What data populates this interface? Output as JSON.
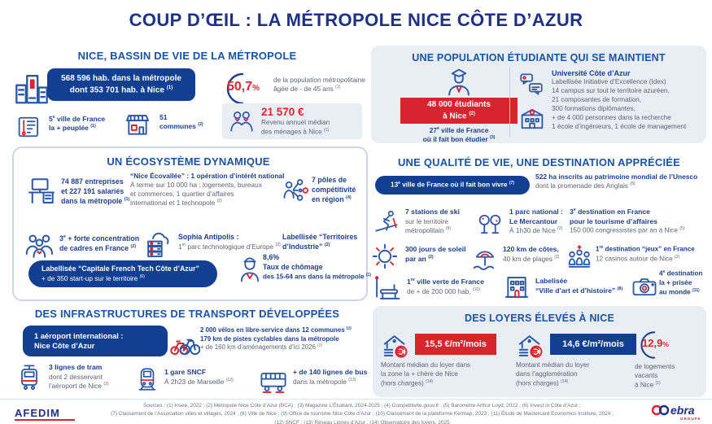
{
  "title": "COUP D’ŒIL : LA MÉTROPOLE NICE CÔTE D’AZUR",
  "colors": {
    "navy": "#1c3f8e",
    "header_blue": "#1a53a3",
    "red": "#d9232e",
    "panel": "#e9edf4",
    "pill": "#123f8f"
  },
  "bassin": {
    "header": "NICE, BASSIN DE VIE DE LA MÉTROPOLE",
    "pop_pill_l1": "568 596 hab. dans la métropole",
    "pop_pill_l2": "dont 353 701 hab. à Nice (1)",
    "pct_value": "50,7",
    "pct_sign": "%",
    "pct_l1": "de la population métropolitaine",
    "pct_l2": "âgée de - de 45 ans (1)",
    "ville_l1": "5e ville de France",
    "ville_l2": "la + peuplée (1)",
    "communes_l1": "51",
    "communes_l2": "communes (2)",
    "revenu_value": "21 570 €",
    "revenu_l1": "Revenu annuel médian",
    "revenu_l2": "des ménages à Nice (1)"
  },
  "etudiante": {
    "header": "UNE POPULATION ÉTUDIANTE QUI SE MAINTIENT",
    "etudiants_l1": "48 000 étudiants",
    "etudiants_l2": "à Nice (2)",
    "ville_l1": "27e ville de France",
    "ville_l2": "où il fait bon étudier (3)",
    "univ_title": "Université Côte d’Azur",
    "univ_l1": "Labellisée Initiative d’Excellence (Idex)",
    "univ_l2": "14 campus sur tout le territoire azuréen,",
    "univ_l3": "21 composantes de formation,",
    "univ_l4": "300 formations diplômantes,",
    "univ_l5": "+ de 4 000 personnes dans la recherche",
    "univ_l6": "1 école d’ingénieurs, 1 école de management"
  },
  "eco": {
    "header": "UN ÉCOSYSTÈME DYNAMIQUE",
    "entreprises_l1": "74 887 entreprises",
    "entreprises_l2": "et 227 191 salariés",
    "entreprises_l3": "dans la métropole (1)",
    "ecovallee_title": "“Nice Écovallée” : 1 opération d’intérêt national",
    "ecovallee_l1": "À terme sur 10 000 ha : logements, bureaux",
    "ecovallee_l2": "et commerces, 1 quartier d’affaires",
    "ecovallee_l3": "international et 1 technopole (2)",
    "poles_l1": "7 pôles de",
    "poles_l2": "compétitivité",
    "poles_l3": "en région (4)",
    "cadres_l1": "3e + forte concentration",
    "cadres_l2": "de cadres en France (2)",
    "sophia_title": "Sophia Antipolis :",
    "sophia_sub": "1er parc technologique d’Europe (2)",
    "territoires_l1": "Labellisée “Territoires",
    "territoires_l2": "d’Industrie” (2)",
    "frenchtech_l1": "Labellisée “Capitale French Tech Côte d’Azur”",
    "frenchtech_l2": "+ de 350 start-up sur le territoire (6)",
    "chomage_l1": "8,6%",
    "chomage_l2": "Taux de chômage",
    "chomage_l3": "des 15-64 ans dans la métropole (1)"
  },
  "qualite": {
    "header": "UNE QUALITÉ DE VIE, UNE DESTINATION APPRÉCIÉE",
    "pill": "13e ville de France où il fait bon vivre (7)",
    "unesco_l1": "522 ha inscrits au patrimoine mondial de l’Unesco",
    "unesco_l2": "dont la promenade des Anglais (8)",
    "ski_l1": "7 stations de ski",
    "ski_l2": "sur le territoire",
    "ski_l3": "métropolitain (9)",
    "parc_l1": "1 parc national :",
    "parc_l2": "Le Mercantour",
    "parc_l3": "À 1h30 de Nice (2)",
    "affaires_l1": "3e destination en France",
    "affaires_l2": "pour le tourisme d’affaires",
    "affaires_l3": "150 000 congressistes par an à Nice (5)",
    "soleil_l1": "300 jours de soleil",
    "soleil_l2": "par an (2)",
    "cotes_l1": "120 km de côtes,",
    "cotes_l2": "40 km de plages (2)",
    "jeux_l1": "1re destination “jeux” en France",
    "jeux_l2": "12 casinos autour de Nice (2)",
    "verte_l1": "1re ville verte de France",
    "verte_l2": "de + de 200 000 hab. (10)",
    "art_l1": "Labelisée",
    "art_l2": "“Ville d’art et d’histoire” (8)",
    "monde_l1": "4e destination",
    "monde_l2": "la + prisée",
    "monde_l3": "au monde (11)"
  },
  "transport": {
    "header": "DES INFRASTRUCTURES DE TRANSPORT DÉVELOPPÉES",
    "aeroport_l1": "1 aéroport international :",
    "aeroport_l2": "Nice Côte d’Azur",
    "velos_l1": "2 000 vélos en libre-service dans 12 communes (2)",
    "velos_l2": "179 km de pistes cyclables dans la métropole",
    "velos_l3": "+ de 160 km d’aménagements d’ici 2026 (2)",
    "tram_l1": "3 lignes de tram",
    "tram_l2": "dont 2 desservant",
    "tram_l3": "l’aéroport de Nice (2)",
    "gare_l1": "1 gare SNCF",
    "gare_l2": "À 2h23 de Marseille (12)",
    "bus_l1": "+ de 140 lignes de bus",
    "bus_l2": "dans la métropole (13)"
  },
  "loyers": {
    "header": "DES LOYERS ÉLEVÉS À NICE",
    "zone_value": "15,5 €/m²/mois",
    "zone_l1": "Montant médian du loyer dans",
    "zone_l2": "la zone la + chère de Nice",
    "zone_l3": "(hors charges) (14)",
    "agglo_value": "14,6 €/m²/mois",
    "agglo_l1": "Montant médian du loyer",
    "agglo_l2": "dans l’agglomération",
    "agglo_l3": "(hors charges) (14)",
    "vacants_value": "12,9",
    "vacants_sign": "%",
    "vacants_l1": "de logements",
    "vacants_l2": "vacants",
    "vacants_l3": "à Nice (1)"
  },
  "footer": {
    "brand_left": "AFEDIM",
    "sources_l1": "Sources : (1) Insee, 2022 ; (2) Métropole Nice Côte d’Azur (BCA) ; (3) Magazine L’Étudiant, 2024-2025 ; (4) Competitivite.gouv.fr ; (5) Baromètre Arthur Loyd, 2022 ; (6) Invest in Côte d’Azur ;",
    "sources_l2": "(7) Classement de l’Association villes et villages, 2024 ; (8) Ville de Nice ; (9) Office de tourisme Nice Côte d’Azur ; (10) Classement de la plateforme Kermap, 2023 ; (11) Étude de Mastercard Economics Institute, 2024 ;",
    "sources_l3": "(12) SNCF ; (13) Réseau Lignes d’Azur ; (14) Observatoire des loyers, 2025",
    "brand_right": "ebra",
    "brand_right_sub": "GROUPE"
  },
  "icons": {
    "city-icon": "buildings skyline",
    "map-icon": "city map with marker",
    "shop-icon": "storefront with awning",
    "family-icon": "two people household",
    "student-icon": "student with cap",
    "chat-icon": "speech bubbles",
    "university-icon": "campus building",
    "desk-icon": "office desk with computer",
    "network-icon": "person with network nodes",
    "crowd-icon": "group of executives",
    "datacenter-icon": "servers with cloud",
    "worker-icon": "person portrait",
    "ski-icon": "skier",
    "trees-icon": "park trees",
    "sun-icon": "sun with rays",
    "beach-icon": "beach umbrella and waves",
    "casino-icon": "game pieces",
    "park-icon": "bench and street lamp",
    "monuments-icon": "historic facade",
    "camera-icon": "photo camera",
    "bike-icon": "bicycles",
    "tram-icon": "tramway",
    "train-icon": "train front",
    "bus-icon": "bus",
    "house-rent-icon": "house with euro coin",
    "arc-icon": "percentage arc"
  }
}
